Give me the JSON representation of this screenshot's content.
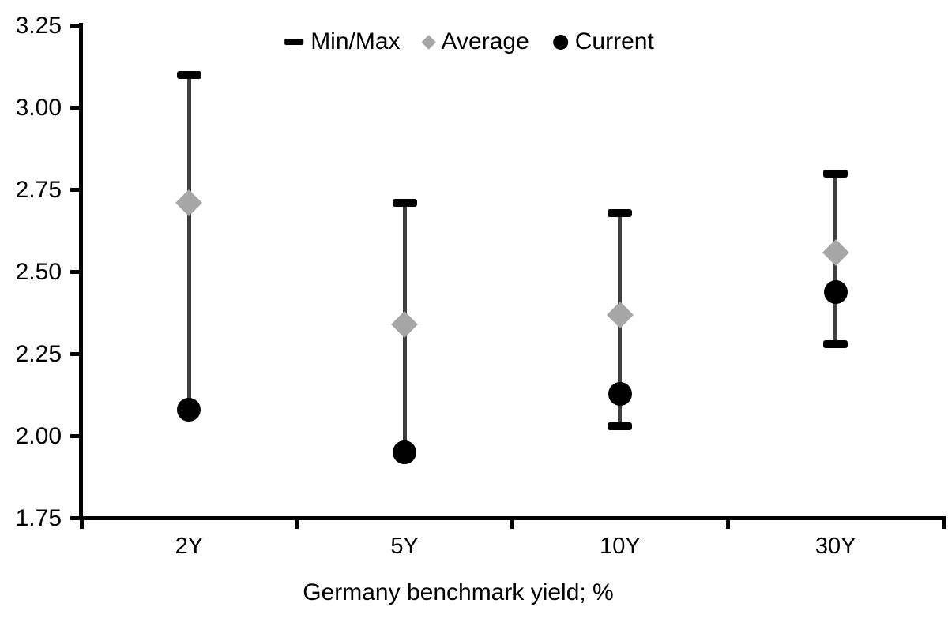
{
  "legend": {
    "items": [
      {
        "label": "Min/Max",
        "marker": "dash-icon"
      },
      {
        "label": "Average",
        "marker": "diamond-icon"
      },
      {
        "label": "Current",
        "marker": "circle-icon"
      }
    ]
  },
  "colors": {
    "background": "#ffffff",
    "axis": "#000000",
    "range_line": "#3f3f3f",
    "range_cap": "#000000",
    "average_marker": "#a6a6a6",
    "current_marker": "#000000"
  },
  "chart_data": {
    "type": "scatter",
    "subtype": "min-max-range-with-markers",
    "categories": [
      "2Y",
      "5Y",
      "10Y",
      "30Y"
    ],
    "series": [
      {
        "name": "Min/Max",
        "role": "range",
        "max": [
          3.1,
          2.71,
          2.68,
          2.8
        ],
        "min": [
          2.08,
          1.95,
          2.03,
          2.28
        ],
        "min_cap_visible": [
          false,
          false,
          true,
          true
        ]
      },
      {
        "name": "Average",
        "role": "diamond",
        "values": [
          2.71,
          2.34,
          2.37,
          2.56
        ]
      },
      {
        "name": "Current",
        "role": "circle",
        "values": [
          2.08,
          1.95,
          2.13,
          2.44
        ]
      }
    ],
    "title": "",
    "xlabel": "Germany benchmark yield; %",
    "ylabel": "",
    "ylim": [
      1.75,
      3.25
    ],
    "yticks": [
      1.75,
      2.0,
      2.25,
      2.5,
      2.75,
      3.0,
      3.25
    ],
    "ytick_labels": [
      "1.75",
      "2.00",
      "2.25",
      "2.50",
      "2.75",
      "3.00",
      "3.25"
    ],
    "grid": false,
    "legend_position": "top-center"
  }
}
